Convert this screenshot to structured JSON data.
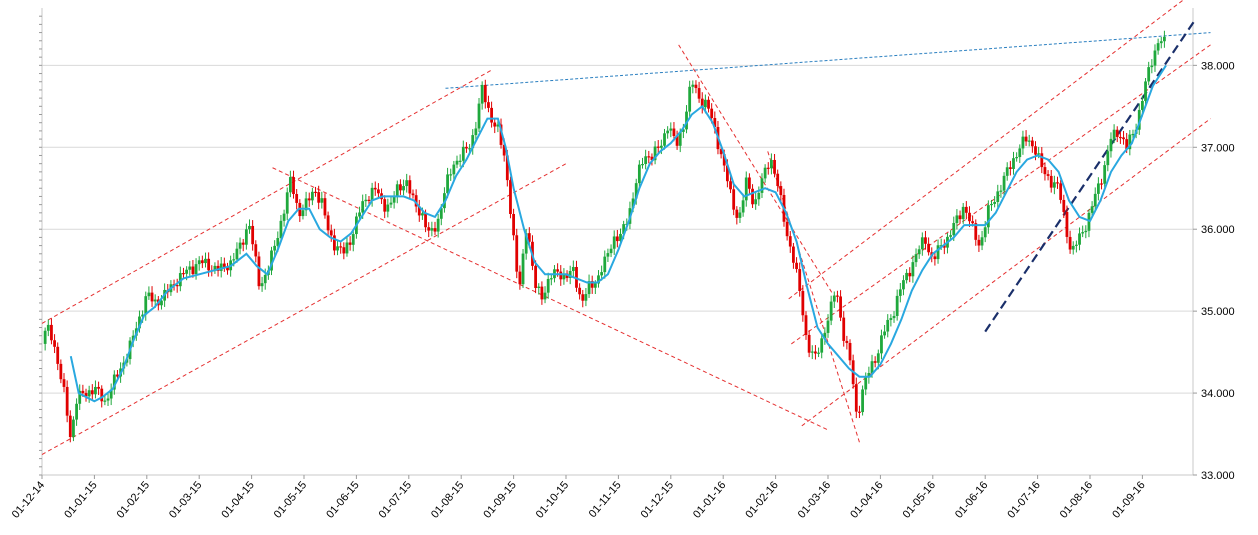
{
  "chart_data": {
    "type": "candlestick",
    "x_labels": [
      "01-12-14",
      "01-01-15",
      "01-02-15",
      "01-03-15",
      "01-04-15",
      "01-05-15",
      "01-06-15",
      "01-07-15",
      "01-08-15",
      "01-09-15",
      "01-10-15",
      "01-11-15",
      "01-12-15",
      "01-01-16",
      "01-02-16",
      "01-03-16",
      "01-04-16",
      "01-05-16",
      "01-06-16",
      "01-07-16",
      "01-08-16",
      "01-09-16"
    ],
    "y_ticks": [
      "33.000",
      "34.000",
      "35.000",
      "36.000",
      "37.000",
      "38.000"
    ],
    "y_tick_values": [
      33,
      34,
      35,
      36,
      37,
      38
    ],
    "ylim": [
      33,
      38.7
    ],
    "xlim": [
      0,
      21.45
    ],
    "grid": "horizontal",
    "colors": {
      "up": "#1fa83c",
      "down": "#e00000",
      "ma": "#29a8e0",
      "channel": "#e53030",
      "resistance": "#2a7fc0",
      "support": "#1a2f6a",
      "grid": "#d9d9d9"
    },
    "close_path": [
      [
        0.0,
        34.6
      ],
      [
        0.1,
        34.8
      ],
      [
        0.2,
        34.7
      ],
      [
        0.35,
        34.2
      ],
      [
        0.45,
        33.9
      ],
      [
        0.55,
        33.45
      ],
      [
        0.65,
        33.9
      ],
      [
        0.8,
        34.0
      ],
      [
        1.0,
        34.05
      ],
      [
        1.2,
        33.9
      ],
      [
        1.35,
        34.1
      ],
      [
        1.5,
        34.3
      ],
      [
        1.7,
        34.6
      ],
      [
        1.85,
        34.9
      ],
      [
        2.0,
        35.2
      ],
      [
        2.15,
        35.1
      ],
      [
        2.35,
        35.2
      ],
      [
        2.6,
        35.4
      ],
      [
        2.8,
        35.5
      ],
      [
        3.0,
        35.6
      ],
      [
        3.2,
        35.55
      ],
      [
        3.4,
        35.5
      ],
      [
        3.6,
        35.6
      ],
      [
        3.8,
        35.8
      ],
      [
        3.95,
        36.1
      ],
      [
        4.05,
        35.7
      ],
      [
        4.15,
        35.3
      ],
      [
        4.3,
        35.5
      ],
      [
        4.45,
        35.8
      ],
      [
        4.6,
        36.2
      ],
      [
        4.75,
        36.6
      ],
      [
        4.9,
        36.2
      ],
      [
        5.05,
        36.3
      ],
      [
        5.2,
        36.5
      ],
      [
        5.35,
        36.3
      ],
      [
        5.45,
        36.0
      ],
      [
        5.6,
        35.8
      ],
      [
        5.75,
        35.7
      ],
      [
        5.9,
        35.9
      ],
      [
        6.05,
        36.2
      ],
      [
        6.2,
        36.4
      ],
      [
        6.35,
        36.5
      ],
      [
        6.5,
        36.3
      ],
      [
        6.65,
        36.3
      ],
      [
        6.8,
        36.5
      ],
      [
        6.95,
        36.6
      ],
      [
        7.1,
        36.3
      ],
      [
        7.25,
        36.2
      ],
      [
        7.4,
        35.9
      ],
      [
        7.55,
        36.1
      ],
      [
        7.7,
        36.5
      ],
      [
        7.85,
        36.8
      ],
      [
        8.0,
        36.9
      ],
      [
        8.15,
        37.0
      ],
      [
        8.25,
        37.2
      ],
      [
        8.4,
        37.7
      ],
      [
        8.55,
        37.4
      ],
      [
        8.7,
        37.2
      ],
      [
        8.85,
        36.8
      ],
      [
        8.95,
        36.2
      ],
      [
        9.1,
        35.2
      ],
      [
        9.25,
        36.1
      ],
      [
        9.4,
        35.3
      ],
      [
        9.55,
        35.2
      ],
      [
        9.7,
        35.4
      ],
      [
        9.85,
        35.5
      ],
      [
        10.0,
        35.4
      ],
      [
        10.15,
        35.5
      ],
      [
        10.3,
        35.1
      ],
      [
        10.45,
        35.3
      ],
      [
        10.6,
        35.4
      ],
      [
        10.75,
        35.6
      ],
      [
        10.9,
        35.9
      ],
      [
        11.05,
        35.9
      ],
      [
        11.2,
        36.2
      ],
      [
        11.35,
        36.6
      ],
      [
        11.5,
        36.9
      ],
      [
        11.65,
        36.9
      ],
      [
        11.8,
        37.0
      ],
      [
        11.95,
        37.3
      ],
      [
        12.1,
        37.0
      ],
      [
        12.25,
        37.3
      ],
      [
        12.4,
        37.8
      ],
      [
        12.55,
        37.6
      ],
      [
        12.7,
        37.5
      ],
      [
        12.85,
        37.2
      ],
      [
        13.0,
        36.8
      ],
      [
        13.15,
        36.4
      ],
      [
        13.3,
        36.1
      ],
      [
        13.45,
        36.6
      ],
      [
        13.6,
        36.3
      ],
      [
        13.75,
        36.6
      ],
      [
        13.9,
        36.9
      ],
      [
        14.05,
        36.5
      ],
      [
        14.2,
        36.0
      ],
      [
        14.35,
        35.6
      ],
      [
        14.5,
        35.1
      ],
      [
        14.6,
        34.6
      ],
      [
        14.75,
        34.4
      ],
      [
        14.9,
        34.7
      ],
      [
        15.05,
        35.0
      ],
      [
        15.15,
        35.3
      ],
      [
        15.3,
        34.7
      ],
      [
        15.45,
        34.3
      ],
      [
        15.55,
        33.7
      ],
      [
        15.65,
        34.0
      ],
      [
        15.8,
        34.3
      ],
      [
        15.95,
        34.5
      ],
      [
        16.1,
        34.8
      ],
      [
        16.25,
        35.0
      ],
      [
        16.4,
        35.3
      ],
      [
        16.55,
        35.5
      ],
      [
        16.7,
        35.7
      ],
      [
        16.85,
        35.9
      ],
      [
        17.0,
        35.6
      ],
      [
        17.15,
        35.8
      ],
      [
        17.3,
        35.9
      ],
      [
        17.45,
        36.1
      ],
      [
        17.6,
        36.3
      ],
      [
        17.75,
        36.0
      ],
      [
        17.9,
        35.8
      ],
      [
        18.05,
        36.2
      ],
      [
        18.2,
        36.4
      ],
      [
        18.35,
        36.6
      ],
      [
        18.5,
        36.8
      ],
      [
        18.65,
        37.0
      ],
      [
        18.8,
        37.1
      ],
      [
        18.95,
        37.0
      ],
      [
        19.1,
        36.7
      ],
      [
        19.25,
        36.6
      ],
      [
        19.4,
        36.5
      ],
      [
        19.55,
        36.0
      ],
      [
        19.65,
        35.7
      ],
      [
        19.8,
        35.9
      ],
      [
        19.95,
        36.1
      ],
      [
        20.1,
        36.4
      ],
      [
        20.25,
        36.7
      ],
      [
        20.4,
        37.1
      ],
      [
        20.55,
        37.2
      ],
      [
        20.7,
        37.0
      ],
      [
        20.85,
        37.2
      ],
      [
        21.0,
        37.6
      ],
      [
        21.15,
        38.0
      ],
      [
        21.3,
        38.3
      ],
      [
        21.4,
        38.3
      ],
      [
        21.45,
        38.2
      ]
    ],
    "moving_average": [
      [
        0.55,
        34.45
      ],
      [
        0.7,
        34.0
      ],
      [
        0.85,
        33.95
      ],
      [
        1.0,
        33.9
      ],
      [
        1.15,
        33.95
      ],
      [
        1.35,
        34.05
      ],
      [
        1.55,
        34.3
      ],
      [
        1.75,
        34.65
      ],
      [
        1.95,
        34.95
      ],
      [
        2.15,
        35.05
      ],
      [
        2.4,
        35.25
      ],
      [
        2.7,
        35.4
      ],
      [
        3.0,
        35.45
      ],
      [
        3.3,
        35.5
      ],
      [
        3.6,
        35.55
      ],
      [
        3.9,
        35.7
      ],
      [
        4.1,
        35.55
      ],
      [
        4.3,
        35.45
      ],
      [
        4.5,
        35.75
      ],
      [
        4.7,
        36.1
      ],
      [
        4.9,
        36.25
      ],
      [
        5.1,
        36.25
      ],
      [
        5.3,
        36.0
      ],
      [
        5.5,
        35.9
      ],
      [
        5.7,
        35.85
      ],
      [
        5.9,
        35.95
      ],
      [
        6.1,
        36.15
      ],
      [
        6.3,
        36.35
      ],
      [
        6.5,
        36.4
      ],
      [
        6.7,
        36.4
      ],
      [
        6.9,
        36.4
      ],
      [
        7.1,
        36.35
      ],
      [
        7.3,
        36.2
      ],
      [
        7.5,
        36.15
      ],
      [
        7.7,
        36.35
      ],
      [
        7.9,
        36.65
      ],
      [
        8.1,
        36.85
      ],
      [
        8.3,
        37.1
      ],
      [
        8.5,
        37.35
      ],
      [
        8.7,
        37.35
      ],
      [
        8.85,
        37.0
      ],
      [
        9.0,
        36.5
      ],
      [
        9.2,
        36.0
      ],
      [
        9.4,
        35.6
      ],
      [
        9.6,
        35.45
      ],
      [
        9.8,
        35.45
      ],
      [
        10.0,
        35.45
      ],
      [
        10.2,
        35.4
      ],
      [
        10.4,
        35.35
      ],
      [
        10.6,
        35.35
      ],
      [
        10.8,
        35.45
      ],
      [
        11.0,
        35.75
      ],
      [
        11.2,
        36.1
      ],
      [
        11.4,
        36.5
      ],
      [
        11.6,
        36.8
      ],
      [
        11.8,
        36.95
      ],
      [
        12.0,
        37.05
      ],
      [
        12.2,
        37.2
      ],
      [
        12.4,
        37.4
      ],
      [
        12.6,
        37.5
      ],
      [
        12.8,
        37.3
      ],
      [
        13.0,
        36.95
      ],
      [
        13.2,
        36.55
      ],
      [
        13.4,
        36.4
      ],
      [
        13.6,
        36.45
      ],
      [
        13.8,
        36.5
      ],
      [
        14.0,
        36.45
      ],
      [
        14.2,
        36.2
      ],
      [
        14.4,
        35.85
      ],
      [
        14.6,
        35.3
      ],
      [
        14.8,
        34.8
      ],
      [
        15.0,
        34.6
      ],
      [
        15.2,
        34.45
      ],
      [
        15.4,
        34.3
      ],
      [
        15.6,
        34.2
      ],
      [
        15.8,
        34.2
      ],
      [
        16.0,
        34.35
      ],
      [
        16.2,
        34.6
      ],
      [
        16.4,
        34.9
      ],
      [
        16.6,
        35.25
      ],
      [
        16.8,
        35.5
      ],
      [
        17.0,
        35.7
      ],
      [
        17.2,
        35.8
      ],
      [
        17.4,
        35.9
      ],
      [
        17.6,
        36.05
      ],
      [
        17.8,
        36.05
      ],
      [
        18.0,
        36.05
      ],
      [
        18.2,
        36.2
      ],
      [
        18.4,
        36.45
      ],
      [
        18.6,
        36.7
      ],
      [
        18.8,
        36.85
      ],
      [
        19.0,
        36.9
      ],
      [
        19.2,
        36.85
      ],
      [
        19.4,
        36.7
      ],
      [
        19.6,
        36.35
      ],
      [
        19.8,
        36.15
      ],
      [
        20.0,
        36.1
      ],
      [
        20.2,
        36.35
      ],
      [
        20.4,
        36.7
      ],
      [
        20.6,
        36.9
      ],
      [
        20.8,
        37.05
      ],
      [
        21.0,
        37.4
      ],
      [
        21.2,
        37.75
      ],
      [
        21.45,
        38.0
      ]
    ],
    "trend_lines": [
      {
        "kind": "channel",
        "points": [
          [
            0.0,
            34.85
          ],
          [
            8.6,
            37.95
          ]
        ]
      },
      {
        "kind": "channel",
        "points": [
          [
            0.0,
            33.25
          ],
          [
            10.0,
            36.8
          ]
        ]
      },
      {
        "kind": "channel",
        "points": [
          [
            4.4,
            36.75
          ],
          [
            15.0,
            33.55
          ]
        ]
      },
      {
        "kind": "channel",
        "points": [
          [
            12.15,
            38.25
          ],
          [
            15.1,
            35.2
          ]
        ]
      },
      {
        "kind": "channel",
        "points": [
          [
            13.85,
            36.95
          ],
          [
            15.6,
            33.4
          ]
        ]
      },
      {
        "kind": "channel",
        "points": [
          [
            14.25,
            35.15
          ],
          [
            22.3,
            39.05
          ]
        ]
      },
      {
        "kind": "channel",
        "points": [
          [
            14.3,
            34.6
          ],
          [
            22.3,
            38.25
          ]
        ]
      },
      {
        "kind": "channel",
        "points": [
          [
            14.5,
            33.6
          ],
          [
            22.3,
            37.35
          ]
        ]
      },
      {
        "kind": "resistance",
        "points": [
          [
            7.7,
            37.72
          ],
          [
            22.3,
            38.4
          ]
        ]
      },
      {
        "kind": "support",
        "points": [
          [
            18.0,
            34.75
          ],
          [
            22.0,
            38.55
          ]
        ]
      }
    ]
  }
}
